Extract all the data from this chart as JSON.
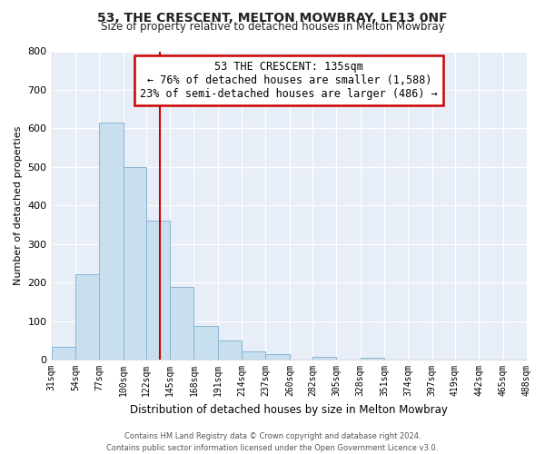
{
  "title": "53, THE CRESCENT, MELTON MOWBRAY, LE13 0NF",
  "subtitle": "Size of property relative to detached houses in Melton Mowbray",
  "xlabel": "Distribution of detached houses by size in Melton Mowbray",
  "ylabel": "Number of detached properties",
  "bar_edges": [
    31,
    54,
    77,
    100,
    122,
    145,
    168,
    191,
    214,
    237,
    260,
    282,
    305,
    328,
    351,
    374,
    397,
    419,
    442,
    465,
    488
  ],
  "bar_heights": [
    33,
    222,
    614,
    500,
    360,
    188,
    88,
    50,
    22,
    14,
    0,
    8,
    0,
    5,
    0,
    0,
    0,
    0,
    0,
    0
  ],
  "bar_color": "#c8dff0",
  "bar_edgecolor": "#8ab4d4",
  "property_line_x": 135,
  "property_line_color": "#cc0000",
  "annotation_line1": "53 THE CRESCENT: 135sqm",
  "annotation_line2": "← 76% of detached houses are smaller (1,588)",
  "annotation_line3": "23% of semi-detached houses are larger (486) →",
  "annotation_box_color": "#ffffff",
  "annotation_box_edgecolor": "#cc0000",
  "ylim": [
    0,
    800
  ],
  "yticks": [
    0,
    100,
    200,
    300,
    400,
    500,
    600,
    700,
    800
  ],
  "tick_labels": [
    "31sqm",
    "54sqm",
    "77sqm",
    "100sqm",
    "122sqm",
    "145sqm",
    "168sqm",
    "191sqm",
    "214sqm",
    "237sqm",
    "260sqm",
    "282sqm",
    "305sqm",
    "328sqm",
    "351sqm",
    "374sqm",
    "397sqm",
    "419sqm",
    "442sqm",
    "465sqm",
    "488sqm"
  ],
  "footer_line1": "Contains HM Land Registry data © Crown copyright and database right 2024.",
  "footer_line2": "Contains public sector information licensed under the Open Government Licence v3.0.",
  "bg_color": "#ffffff",
  "plot_bg_color": "#e8eef8",
  "grid_color": "#ffffff"
}
